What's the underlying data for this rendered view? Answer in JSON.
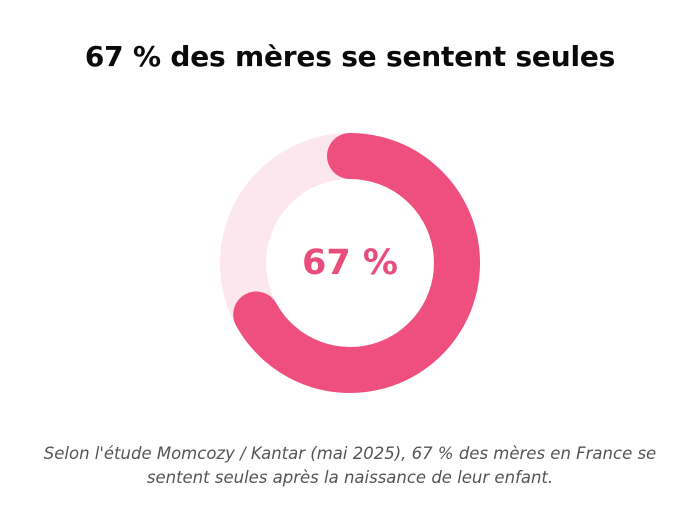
{
  "title": "67 % des mères se sentent seules",
  "caption": "Selon l'étude Momcozy / Kantar (mai 2025), 67 % des mères en France se sentent seules après la naissance de leur enfant.",
  "colors": {
    "accent": "#ef4f7e",
    "track": "#fde7ee",
    "center_text": "#e84d7c",
    "title": "#0a0a0a",
    "caption": "#555555"
  },
  "chart_data": {
    "type": "pie",
    "subtype": "donut",
    "title": "67 % des mères se sentent seules",
    "center_label": "67 %",
    "values": [
      67,
      33
    ],
    "max": 100,
    "start": "top",
    "direction": "clockwise",
    "legend": "none"
  }
}
